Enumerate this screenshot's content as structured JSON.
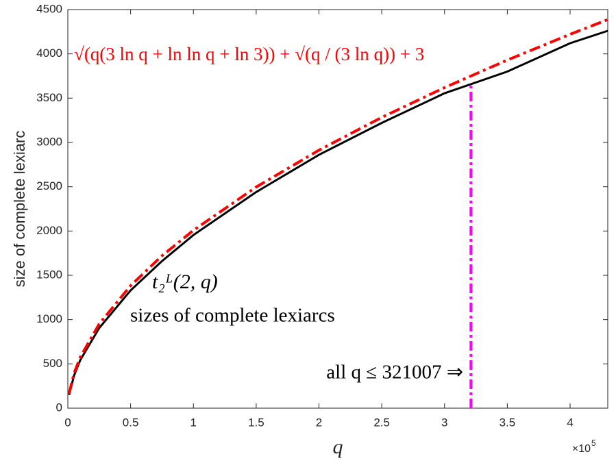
{
  "chart_data": {
    "type": "line",
    "x": [
      1000,
      5000,
      10000,
      25000,
      50000,
      75000,
      100000,
      150000,
      200000,
      250000,
      300000,
      350000,
      400000,
      430000
    ],
    "series": [
      {
        "name": "t₂ᴸ(2, q)",
        "color": "#000000",
        "values": [
          150,
          370,
          545,
          905,
          1330,
          1660,
          1955,
          2440,
          2860,
          3220,
          3555,
          3800,
          4120,
          4260
        ]
      },
      {
        "name": "√(q(3 ln q + ln ln q + ln 3)) + √(q / (3 ln q)) + 3",
        "color": "#ff0000",
        "values": [
          164,
          396,
          578,
          951,
          1383,
          1720,
          2008,
          2497,
          2913,
          3283,
          3619,
          3930,
          4221,
          4387
        ]
      }
    ],
    "threshold": {
      "x": 321007,
      "y": 3640,
      "color": "#ff00ff"
    },
    "annotations": [
      "sizes of complete lexiarcs",
      "all q ≤ 321007 ⇒"
    ],
    "xlabel": "q",
    "ylabel": "size of complete lexiarc",
    "x_multiplier": "×10",
    "x_multiplier_exp": "5",
    "xlim": [
      0,
      430000
    ],
    "xticks": [
      0,
      {
        "value": 50000,
        "label": "0.5"
      },
      {
        "value": 100000,
        "label": "1"
      },
      {
        "value": 150000,
        "label": "1.5"
      },
      {
        "value": 200000,
        "label": "2"
      },
      {
        "value": 250000,
        "label": "2.5"
      },
      {
        "value": 300000,
        "label": "3"
      },
      {
        "value": 350000,
        "label": "3.5"
      },
      {
        "value": 400000,
        "label": "4"
      }
    ],
    "ylim": [
      0,
      4500
    ],
    "yticks": [
      0,
      500,
      1000,
      1500,
      2000,
      2500,
      3000,
      3500,
      4000,
      4500
    ],
    "grid": false
  }
}
